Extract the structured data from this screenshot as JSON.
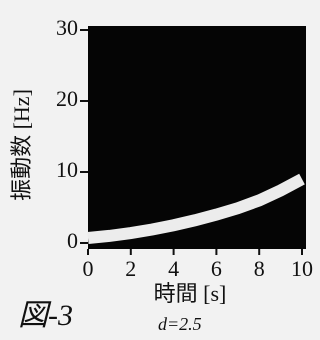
{
  "chart_data": {
    "type": "line",
    "x_label": "時間 [s]",
    "y_label": "振動数 [Hz]",
    "annotations": [
      "図-3",
      "d=2.5"
    ],
    "x": [
      0,
      1,
      2,
      3,
      4,
      5,
      6,
      7,
      8,
      9,
      10
    ],
    "values": [
      0.7,
      1.0,
      1.4,
      1.9,
      2.5,
      3.2,
      4.0,
      4.9,
      6.0,
      7.4,
      9.0
    ],
    "color": "#ececec",
    "background": "#050505",
    "xlim": [
      0,
      10
    ],
    "xticks": [
      0,
      2,
      4,
      6,
      8,
      10
    ],
    "ylim": [
      0,
      30
    ],
    "yticks": [
      0,
      10,
      20,
      30
    ]
  }
}
